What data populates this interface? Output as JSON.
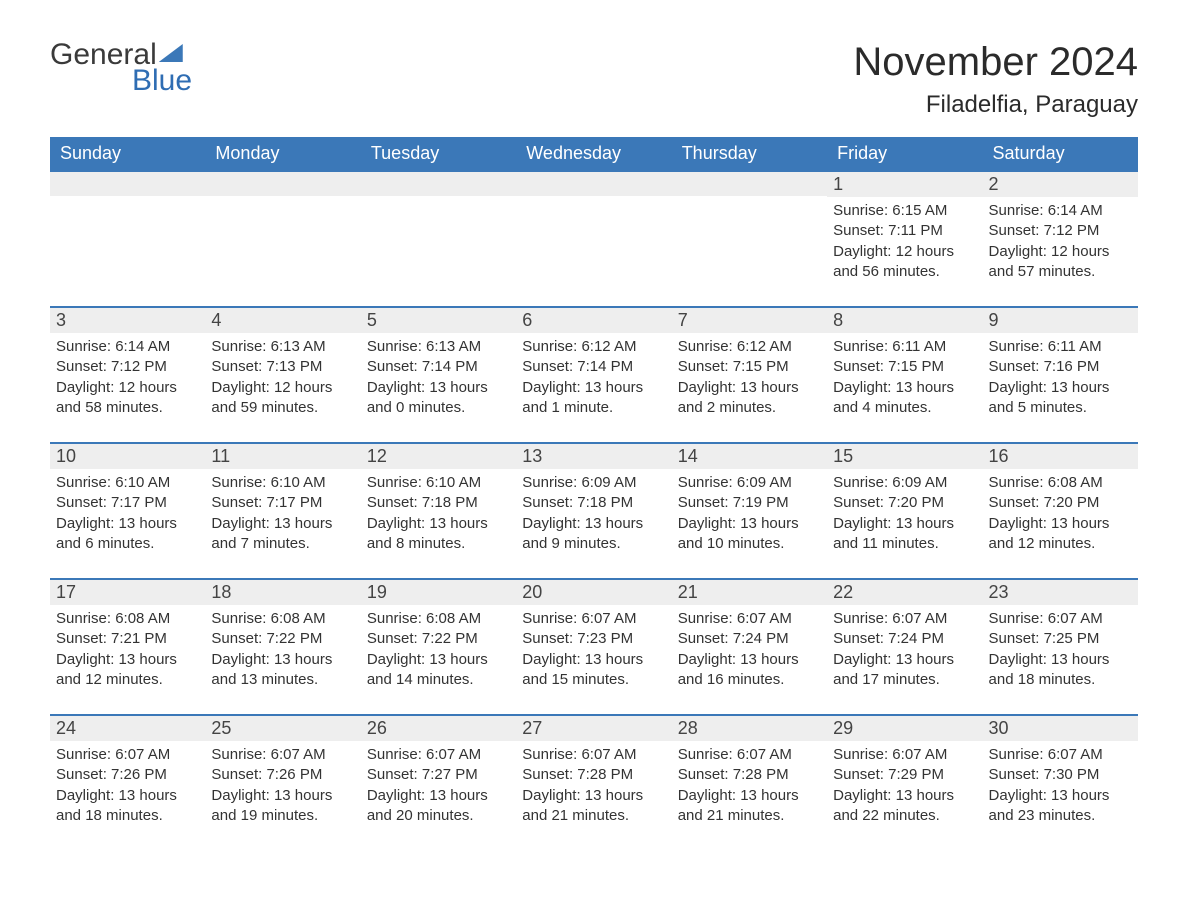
{
  "logo": {
    "text_general": "General",
    "text_blue": "Blue",
    "brand_color": "#3b78b8"
  },
  "title": "November 2024",
  "subtitle": "Filadelfia, Paraguay",
  "colors": {
    "header_bg": "#3b78b8",
    "header_text": "#ffffff",
    "daynum_bg": "#eeeeee",
    "week_border": "#3b78b8",
    "body_text": "#333333",
    "page_bg": "#ffffff"
  },
  "day_labels": [
    "Sunday",
    "Monday",
    "Tuesday",
    "Wednesday",
    "Thursday",
    "Friday",
    "Saturday"
  ],
  "weeks": [
    [
      {
        "day": "",
        "sunrise": "",
        "sunset": "",
        "daylight": ""
      },
      {
        "day": "",
        "sunrise": "",
        "sunset": "",
        "daylight": ""
      },
      {
        "day": "",
        "sunrise": "",
        "sunset": "",
        "daylight": ""
      },
      {
        "day": "",
        "sunrise": "",
        "sunset": "",
        "daylight": ""
      },
      {
        "day": "",
        "sunrise": "",
        "sunset": "",
        "daylight": ""
      },
      {
        "day": "1",
        "sunrise": "Sunrise: 6:15 AM",
        "sunset": "Sunset: 7:11 PM",
        "daylight": "Daylight: 12 hours and 56 minutes."
      },
      {
        "day": "2",
        "sunrise": "Sunrise: 6:14 AM",
        "sunset": "Sunset: 7:12 PM",
        "daylight": "Daylight: 12 hours and 57 minutes."
      }
    ],
    [
      {
        "day": "3",
        "sunrise": "Sunrise: 6:14 AM",
        "sunset": "Sunset: 7:12 PM",
        "daylight": "Daylight: 12 hours and 58 minutes."
      },
      {
        "day": "4",
        "sunrise": "Sunrise: 6:13 AM",
        "sunset": "Sunset: 7:13 PM",
        "daylight": "Daylight: 12 hours and 59 minutes."
      },
      {
        "day": "5",
        "sunrise": "Sunrise: 6:13 AM",
        "sunset": "Sunset: 7:14 PM",
        "daylight": "Daylight: 13 hours and 0 minutes."
      },
      {
        "day": "6",
        "sunrise": "Sunrise: 6:12 AM",
        "sunset": "Sunset: 7:14 PM",
        "daylight": "Daylight: 13 hours and 1 minute."
      },
      {
        "day": "7",
        "sunrise": "Sunrise: 6:12 AM",
        "sunset": "Sunset: 7:15 PM",
        "daylight": "Daylight: 13 hours and 2 minutes."
      },
      {
        "day": "8",
        "sunrise": "Sunrise: 6:11 AM",
        "sunset": "Sunset: 7:15 PM",
        "daylight": "Daylight: 13 hours and 4 minutes."
      },
      {
        "day": "9",
        "sunrise": "Sunrise: 6:11 AM",
        "sunset": "Sunset: 7:16 PM",
        "daylight": "Daylight: 13 hours and 5 minutes."
      }
    ],
    [
      {
        "day": "10",
        "sunrise": "Sunrise: 6:10 AM",
        "sunset": "Sunset: 7:17 PM",
        "daylight": "Daylight: 13 hours and 6 minutes."
      },
      {
        "day": "11",
        "sunrise": "Sunrise: 6:10 AM",
        "sunset": "Sunset: 7:17 PM",
        "daylight": "Daylight: 13 hours and 7 minutes."
      },
      {
        "day": "12",
        "sunrise": "Sunrise: 6:10 AM",
        "sunset": "Sunset: 7:18 PM",
        "daylight": "Daylight: 13 hours and 8 minutes."
      },
      {
        "day": "13",
        "sunrise": "Sunrise: 6:09 AM",
        "sunset": "Sunset: 7:18 PM",
        "daylight": "Daylight: 13 hours and 9 minutes."
      },
      {
        "day": "14",
        "sunrise": "Sunrise: 6:09 AM",
        "sunset": "Sunset: 7:19 PM",
        "daylight": "Daylight: 13 hours and 10 minutes."
      },
      {
        "day": "15",
        "sunrise": "Sunrise: 6:09 AM",
        "sunset": "Sunset: 7:20 PM",
        "daylight": "Daylight: 13 hours and 11 minutes."
      },
      {
        "day": "16",
        "sunrise": "Sunrise: 6:08 AM",
        "sunset": "Sunset: 7:20 PM",
        "daylight": "Daylight: 13 hours and 12 minutes."
      }
    ],
    [
      {
        "day": "17",
        "sunrise": "Sunrise: 6:08 AM",
        "sunset": "Sunset: 7:21 PM",
        "daylight": "Daylight: 13 hours and 12 minutes."
      },
      {
        "day": "18",
        "sunrise": "Sunrise: 6:08 AM",
        "sunset": "Sunset: 7:22 PM",
        "daylight": "Daylight: 13 hours and 13 minutes."
      },
      {
        "day": "19",
        "sunrise": "Sunrise: 6:08 AM",
        "sunset": "Sunset: 7:22 PM",
        "daylight": "Daylight: 13 hours and 14 minutes."
      },
      {
        "day": "20",
        "sunrise": "Sunrise: 6:07 AM",
        "sunset": "Sunset: 7:23 PM",
        "daylight": "Daylight: 13 hours and 15 minutes."
      },
      {
        "day": "21",
        "sunrise": "Sunrise: 6:07 AM",
        "sunset": "Sunset: 7:24 PM",
        "daylight": "Daylight: 13 hours and 16 minutes."
      },
      {
        "day": "22",
        "sunrise": "Sunrise: 6:07 AM",
        "sunset": "Sunset: 7:24 PM",
        "daylight": "Daylight: 13 hours and 17 minutes."
      },
      {
        "day": "23",
        "sunrise": "Sunrise: 6:07 AM",
        "sunset": "Sunset: 7:25 PM",
        "daylight": "Daylight: 13 hours and 18 minutes."
      }
    ],
    [
      {
        "day": "24",
        "sunrise": "Sunrise: 6:07 AM",
        "sunset": "Sunset: 7:26 PM",
        "daylight": "Daylight: 13 hours and 18 minutes."
      },
      {
        "day": "25",
        "sunrise": "Sunrise: 6:07 AM",
        "sunset": "Sunset: 7:26 PM",
        "daylight": "Daylight: 13 hours and 19 minutes."
      },
      {
        "day": "26",
        "sunrise": "Sunrise: 6:07 AM",
        "sunset": "Sunset: 7:27 PM",
        "daylight": "Daylight: 13 hours and 20 minutes."
      },
      {
        "day": "27",
        "sunrise": "Sunrise: 6:07 AM",
        "sunset": "Sunset: 7:28 PM",
        "daylight": "Daylight: 13 hours and 21 minutes."
      },
      {
        "day": "28",
        "sunrise": "Sunrise: 6:07 AM",
        "sunset": "Sunset: 7:28 PM",
        "daylight": "Daylight: 13 hours and 21 minutes."
      },
      {
        "day": "29",
        "sunrise": "Sunrise: 6:07 AM",
        "sunset": "Sunset: 7:29 PM",
        "daylight": "Daylight: 13 hours and 22 minutes."
      },
      {
        "day": "30",
        "sunrise": "Sunrise: 6:07 AM",
        "sunset": "Sunset: 7:30 PM",
        "daylight": "Daylight: 13 hours and 23 minutes."
      }
    ]
  ]
}
